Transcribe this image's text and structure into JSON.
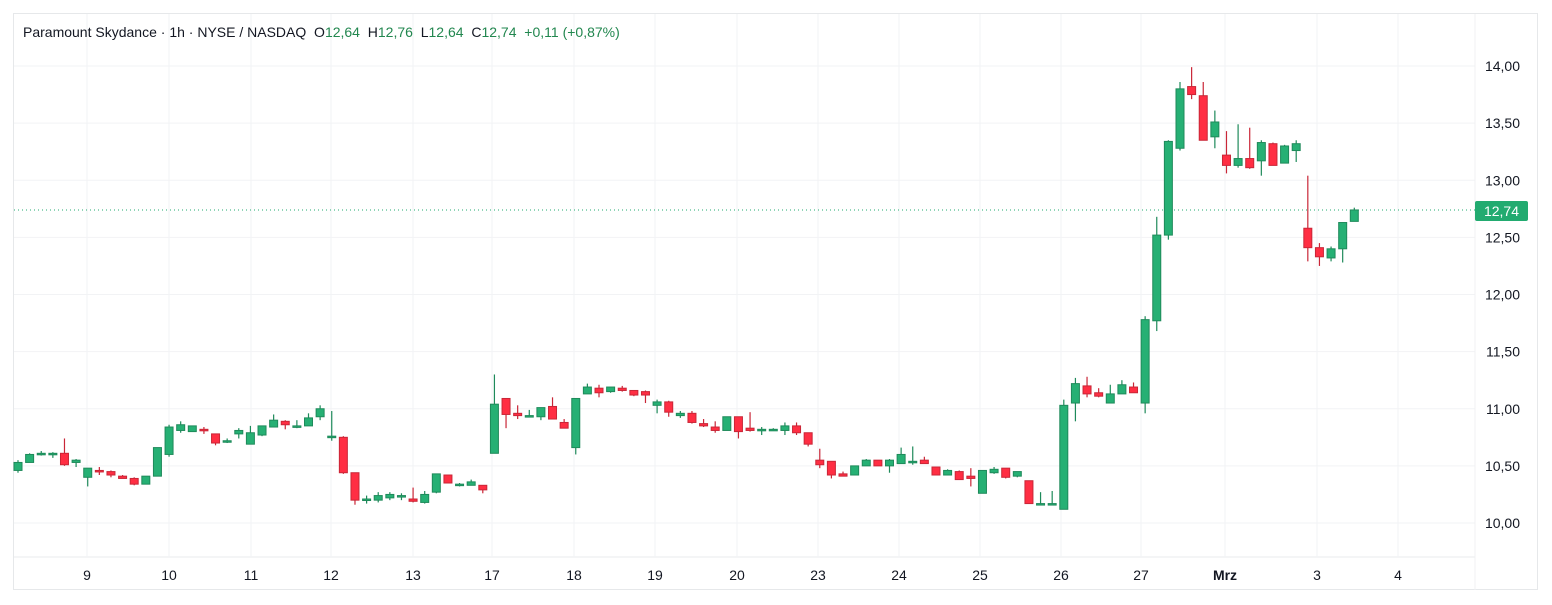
{
  "legend": {
    "symbol": "Paramount Skydance",
    "interval": "1h",
    "exchange": "NYSE / NASDAQ",
    "open_label": "O",
    "open": "12,64",
    "high_label": "H",
    "high": "12,76",
    "low_label": "L",
    "low": "12,64",
    "close_label": "C",
    "close": "12,74",
    "change": "+0,11 (+0,87%)"
  },
  "last_price_tag": "12,74",
  "colors": {
    "up": "#26b074",
    "up_border": "#1e8a5a",
    "down": "#ff2e43",
    "down_border": "#c92637",
    "last_price": "#22ab70",
    "grid": "#f2f3f5"
  },
  "chart_data": {
    "type": "candlestick",
    "title": "Paramount Skydance · 1h · NYSE / NASDAQ",
    "xlabel": "",
    "ylabel": "",
    "ylim": [
      9.7,
      14.3
    ],
    "y_ticks": [
      "14,00",
      "13,50",
      "13,00",
      "12,50",
      "12,00",
      "11,50",
      "11,00",
      "10,50",
      "10,00"
    ],
    "x_ticks": [
      "9",
      "10",
      "11",
      "12",
      "13",
      "17",
      "18",
      "19",
      "20",
      "23",
      "24",
      "25",
      "26",
      "27",
      "Mrz",
      "3",
      "4"
    ],
    "grid": true,
    "last_price": 12.74,
    "candles": [
      {
        "o": 10.46,
        "h": 10.55,
        "l": 10.44,
        "c": 10.53
      },
      {
        "o": 10.53,
        "h": 10.61,
        "l": 10.53,
        "c": 10.6
      },
      {
        "o": 10.6,
        "h": 10.63,
        "l": 10.59,
        "c": 10.61
      },
      {
        "o": 10.6,
        "h": 10.62,
        "l": 10.57,
        "c": 10.61
      },
      {
        "o": 10.61,
        "h": 10.74,
        "l": 10.5,
        "c": 10.51
      },
      {
        "o": 10.53,
        "h": 10.56,
        "l": 10.49,
        "c": 10.55
      },
      {
        "o": 10.4,
        "h": 10.48,
        "l": 10.32,
        "c": 10.48
      },
      {
        "o": 10.46,
        "h": 10.49,
        "l": 10.42,
        "c": 10.45
      },
      {
        "o": 10.45,
        "h": 10.46,
        "l": 10.4,
        "c": 10.42
      },
      {
        "o": 10.41,
        "h": 10.42,
        "l": 10.39,
        "c": 10.39
      },
      {
        "o": 10.39,
        "h": 10.4,
        "l": 10.33,
        "c": 10.34
      },
      {
        "o": 10.34,
        "h": 10.41,
        "l": 10.34,
        "c": 10.41
      },
      {
        "o": 10.41,
        "h": 10.66,
        "l": 10.41,
        "c": 10.66
      },
      {
        "o": 10.6,
        "h": 10.86,
        "l": 10.58,
        "c": 10.84
      },
      {
        "o": 10.81,
        "h": 10.89,
        "l": 10.79,
        "c": 10.86
      },
      {
        "o": 10.8,
        "h": 10.85,
        "l": 10.8,
        "c": 10.85
      },
      {
        "o": 10.82,
        "h": 10.84,
        "l": 10.78,
        "c": 10.81
      },
      {
        "o": 10.78,
        "h": 10.78,
        "l": 10.68,
        "c": 10.7
      },
      {
        "o": 10.71,
        "h": 10.74,
        "l": 10.7,
        "c": 10.72
      },
      {
        "o": 10.78,
        "h": 10.83,
        "l": 10.74,
        "c": 10.81
      },
      {
        "o": 10.69,
        "h": 10.85,
        "l": 10.69,
        "c": 10.79
      },
      {
        "o": 10.77,
        "h": 10.85,
        "l": 10.76,
        "c": 10.85
      },
      {
        "o": 10.84,
        "h": 10.95,
        "l": 10.84,
        "c": 10.9
      },
      {
        "o": 10.89,
        "h": 10.9,
        "l": 10.82,
        "c": 10.86
      },
      {
        "o": 10.84,
        "h": 10.9,
        "l": 10.83,
        "c": 10.85
      },
      {
        "o": 10.85,
        "h": 10.96,
        "l": 10.85,
        "c": 10.92
      },
      {
        "o": 10.93,
        "h": 11.03,
        "l": 10.9,
        "c": 11.0
      },
      {
        "o": 10.76,
        "h": 10.98,
        "l": 10.72,
        "c": 10.76
      },
      {
        "o": 10.75,
        "h": 10.76,
        "l": 10.43,
        "c": 10.44
      },
      {
        "o": 10.44,
        "h": 10.44,
        "l": 10.16,
        "c": 10.2
      },
      {
        "o": 10.21,
        "h": 10.24,
        "l": 10.17,
        "c": 10.21
      },
      {
        "o": 10.2,
        "h": 10.27,
        "l": 10.18,
        "c": 10.24
      },
      {
        "o": 10.22,
        "h": 10.27,
        "l": 10.2,
        "c": 10.25
      },
      {
        "o": 10.23,
        "h": 10.26,
        "l": 10.2,
        "c": 10.24
      },
      {
        "o": 10.21,
        "h": 10.31,
        "l": 10.18,
        "c": 10.19
      },
      {
        "o": 10.18,
        "h": 10.28,
        "l": 10.17,
        "c": 10.25
      },
      {
        "o": 10.27,
        "h": 10.43,
        "l": 10.26,
        "c": 10.43
      },
      {
        "o": 10.42,
        "h": 10.42,
        "l": 10.35,
        "c": 10.35
      },
      {
        "o": 10.33,
        "h": 10.35,
        "l": 10.32,
        "c": 10.34
      },
      {
        "o": 10.33,
        "h": 10.38,
        "l": 10.33,
        "c": 10.36
      },
      {
        "o": 10.33,
        "h": 10.33,
        "l": 10.26,
        "c": 10.29
      },
      {
        "o": 10.61,
        "h": 11.3,
        "l": 10.61,
        "c": 11.04
      },
      {
        "o": 11.09,
        "h": 11.09,
        "l": 10.83,
        "c": 10.95
      },
      {
        "o": 10.96,
        "h": 11.03,
        "l": 10.91,
        "c": 10.94
      },
      {
        "o": 10.94,
        "h": 10.99,
        "l": 10.93,
        "c": 10.94
      },
      {
        "o": 10.93,
        "h": 11.0,
        "l": 10.9,
        "c": 11.01
      },
      {
        "o": 11.02,
        "h": 11.1,
        "l": 10.91,
        "c": 10.91
      },
      {
        "o": 10.88,
        "h": 10.91,
        "l": 10.83,
        "c": 10.83
      },
      {
        "o": 10.66,
        "h": 11.09,
        "l": 10.6,
        "c": 11.09
      },
      {
        "o": 11.13,
        "h": 11.22,
        "l": 11.13,
        "c": 11.19
      },
      {
        "o": 11.18,
        "h": 11.21,
        "l": 11.1,
        "c": 11.14
      },
      {
        "o": 11.15,
        "h": 11.19,
        "l": 11.14,
        "c": 11.19
      },
      {
        "o": 11.18,
        "h": 11.2,
        "l": 11.15,
        "c": 11.16
      },
      {
        "o": 11.16,
        "h": 11.16,
        "l": 11.11,
        "c": 11.12
      },
      {
        "o": 11.15,
        "h": 11.16,
        "l": 11.05,
        "c": 11.12
      },
      {
        "o": 11.03,
        "h": 11.08,
        "l": 10.96,
        "c": 11.06
      },
      {
        "o": 11.06,
        "h": 11.07,
        "l": 10.93,
        "c": 10.97
      },
      {
        "o": 10.94,
        "h": 10.98,
        "l": 10.92,
        "c": 10.96
      },
      {
        "o": 10.96,
        "h": 10.98,
        "l": 10.87,
        "c": 10.88
      },
      {
        "o": 10.87,
        "h": 10.91,
        "l": 10.84,
        "c": 10.85
      },
      {
        "o": 10.84,
        "h": 10.89,
        "l": 10.79,
        "c": 10.81
      },
      {
        "o": 10.81,
        "h": 10.93,
        "l": 10.81,
        "c": 10.93
      },
      {
        "o": 10.93,
        "h": 10.93,
        "l": 10.74,
        "c": 10.8
      },
      {
        "o": 10.83,
        "h": 10.97,
        "l": 10.8,
        "c": 10.81
      },
      {
        "o": 10.82,
        "h": 10.84,
        "l": 10.77,
        "c": 10.82
      },
      {
        "o": 10.82,
        "h": 10.83,
        "l": 10.81,
        "c": 10.82
      },
      {
        "o": 10.81,
        "h": 10.88,
        "l": 10.77,
        "c": 10.85
      },
      {
        "o": 10.85,
        "h": 10.88,
        "l": 10.77,
        "c": 10.79
      },
      {
        "o": 10.79,
        "h": 10.79,
        "l": 10.67,
        "c": 10.69
      },
      {
        "o": 10.55,
        "h": 10.65,
        "l": 10.48,
        "c": 10.51
      },
      {
        "o": 10.54,
        "h": 10.54,
        "l": 10.39,
        "c": 10.42
      },
      {
        "o": 10.43,
        "h": 10.45,
        "l": 10.41,
        "c": 10.41
      },
      {
        "o": 10.42,
        "h": 10.5,
        "l": 10.42,
        "c": 10.5
      },
      {
        "o": 10.5,
        "h": 10.56,
        "l": 10.5,
        "c": 10.55
      },
      {
        "o": 10.55,
        "h": 10.55,
        "l": 10.5,
        "c": 10.5
      },
      {
        "o": 10.5,
        "h": 10.56,
        "l": 10.44,
        "c": 10.55
      },
      {
        "o": 10.52,
        "h": 10.66,
        "l": 10.52,
        "c": 10.6
      },
      {
        "o": 10.54,
        "h": 10.67,
        "l": 10.51,
        "c": 10.54
      },
      {
        "o": 10.55,
        "h": 10.58,
        "l": 10.52,
        "c": 10.52
      },
      {
        "o": 10.49,
        "h": 10.49,
        "l": 10.42,
        "c": 10.42
      },
      {
        "o": 10.42,
        "h": 10.47,
        "l": 10.42,
        "c": 10.46
      },
      {
        "o": 10.45,
        "h": 10.46,
        "l": 10.38,
        "c": 10.38
      },
      {
        "o": 10.41,
        "h": 10.48,
        "l": 10.32,
        "c": 10.39
      },
      {
        "o": 10.26,
        "h": 10.46,
        "l": 10.26,
        "c": 10.46
      },
      {
        "o": 10.44,
        "h": 10.49,
        "l": 10.43,
        "c": 10.47
      },
      {
        "o": 10.48,
        "h": 10.48,
        "l": 10.39,
        "c": 10.4
      },
      {
        "o": 10.41,
        "h": 10.45,
        "l": 10.4,
        "c": 10.45
      },
      {
        "o": 10.37,
        "h": 10.37,
        "l": 10.17,
        "c": 10.17
      },
      {
        "o": 10.17,
        "h": 10.27,
        "l": 10.17,
        "c": 10.17
      },
      {
        "o": 10.16,
        "h": 10.28,
        "l": 10.16,
        "c": 10.17
      },
      {
        "o": 10.12,
        "h": 11.08,
        "l": 10.12,
        "c": 11.03
      },
      {
        "o": 11.05,
        "h": 11.27,
        "l": 10.89,
        "c": 11.22
      },
      {
        "o": 11.2,
        "h": 11.28,
        "l": 11.1,
        "c": 11.13
      },
      {
        "o": 11.14,
        "h": 11.18,
        "l": 11.1,
        "c": 11.11
      },
      {
        "o": 11.05,
        "h": 11.21,
        "l": 11.05,
        "c": 11.13
      },
      {
        "o": 11.13,
        "h": 11.25,
        "l": 11.13,
        "c": 11.21
      },
      {
        "o": 11.19,
        "h": 11.23,
        "l": 11.15,
        "c": 11.14
      },
      {
        "o": 11.05,
        "h": 11.81,
        "l": 10.96,
        "c": 11.78
      },
      {
        "o": 11.77,
        "h": 12.68,
        "l": 11.68,
        "c": 12.52
      },
      {
        "o": 12.52,
        "h": 13.35,
        "l": 12.48,
        "c": 13.34
      },
      {
        "o": 13.28,
        "h": 13.86,
        "l": 13.26,
        "c": 13.8
      },
      {
        "o": 13.82,
        "h": 13.99,
        "l": 13.71,
        "c": 13.75
      },
      {
        "o": 13.74,
        "h": 13.86,
        "l": 13.35,
        "c": 13.35
      },
      {
        "o": 13.38,
        "h": 13.61,
        "l": 13.28,
        "c": 13.51
      },
      {
        "o": 13.22,
        "h": 13.43,
        "l": 13.06,
        "c": 13.13
      },
      {
        "o": 13.13,
        "h": 13.49,
        "l": 13.11,
        "c": 13.19
      },
      {
        "o": 13.19,
        "h": 13.46,
        "l": 13.1,
        "c": 13.11
      },
      {
        "o": 13.17,
        "h": 13.35,
        "l": 13.04,
        "c": 13.33
      },
      {
        "o": 13.32,
        "h": 13.33,
        "l": 13.13,
        "c": 13.13
      },
      {
        "o": 13.15,
        "h": 13.31,
        "l": 13.15,
        "c": 13.3
      },
      {
        "o": 13.26,
        "h": 13.35,
        "l": 13.16,
        "c": 13.32
      },
      {
        "o": 12.58,
        "h": 13.04,
        "l": 12.29,
        "c": 12.41
      },
      {
        "o": 12.41,
        "h": 12.45,
        "l": 12.25,
        "c": 12.33
      },
      {
        "o": 12.32,
        "h": 12.42,
        "l": 12.29,
        "c": 12.4
      },
      {
        "o": 12.4,
        "h": 12.63,
        "l": 12.28,
        "c": 12.63
      },
      {
        "o": 12.64,
        "h": 12.76,
        "l": 12.64,
        "c": 12.74
      }
    ]
  }
}
